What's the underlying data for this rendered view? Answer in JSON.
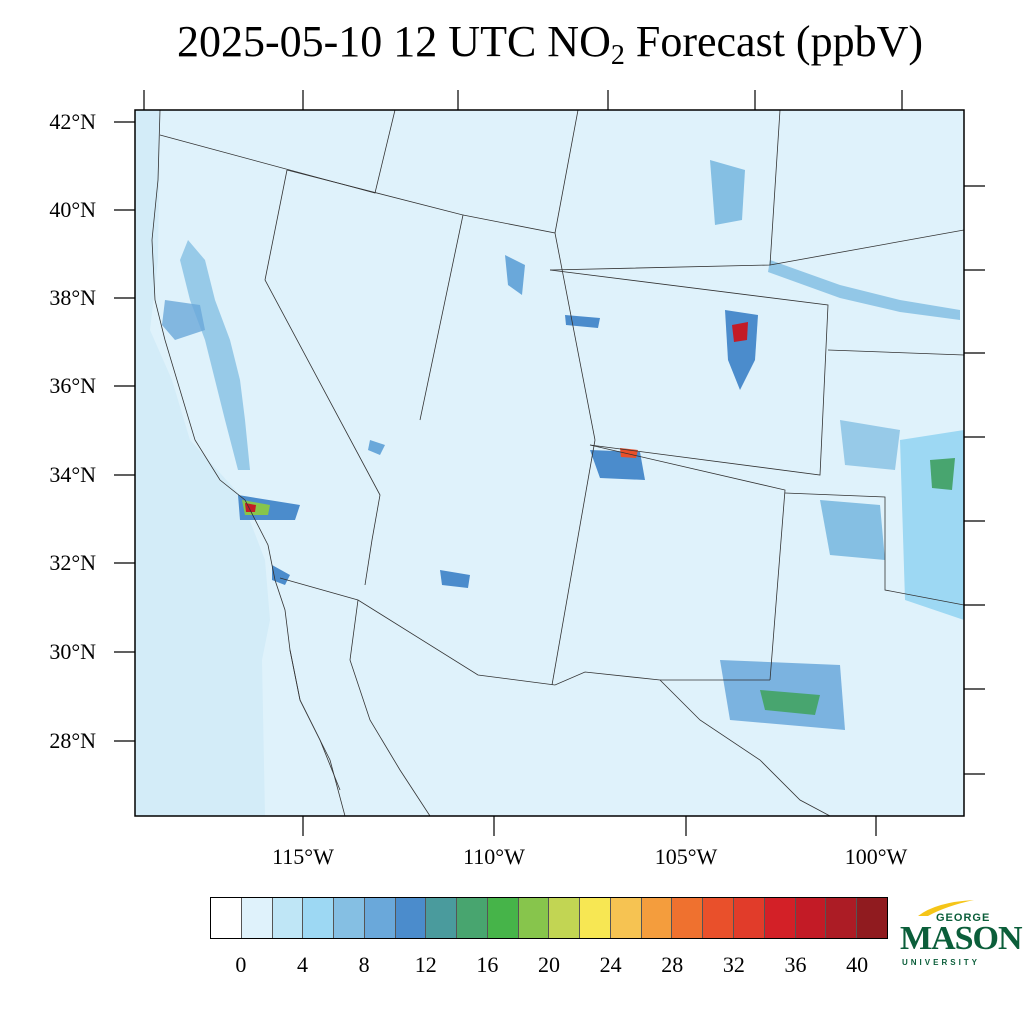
{
  "title": {
    "main": "2025-05-10 12 UTC NO",
    "sub": "2",
    "rest": " Forecast (ppbV)"
  },
  "map": {
    "latitude_labels": [
      "42°N",
      "40°N",
      "38°N",
      "36°N",
      "34°N",
      "32°N",
      "30°N",
      "28°N"
    ],
    "longitude_labels": [
      "115°W",
      "110°W",
      "105°W",
      "100°W"
    ],
    "background_color": "#dff2fb",
    "coast_line_color": "#000000"
  },
  "colorbar": {
    "colors": [
      "#ffffff",
      "#dff2fb",
      "#bfe6f6",
      "#9dd8f3",
      "#85bfe3",
      "#6aa8da",
      "#4b8ccc",
      "#4a9b9d",
      "#48a56f",
      "#46b449",
      "#87c54c",
      "#c2d553",
      "#f7e753",
      "#f6c352",
      "#f49d3d",
      "#ef712f",
      "#e9502b",
      "#e13c2a",
      "#d32027",
      "#c31b26",
      "#ac1c25",
      "#901b1f"
    ],
    "labels": [
      "0",
      "4",
      "8",
      "12",
      "16",
      "20",
      "24",
      "28",
      "32",
      "36",
      "40"
    ]
  },
  "logo": {
    "line1": "GEORGE",
    "line2": "MASON",
    "line3": "UNIVERSITY",
    "green": "#0b5e3a",
    "gold": "#f5c518"
  }
}
